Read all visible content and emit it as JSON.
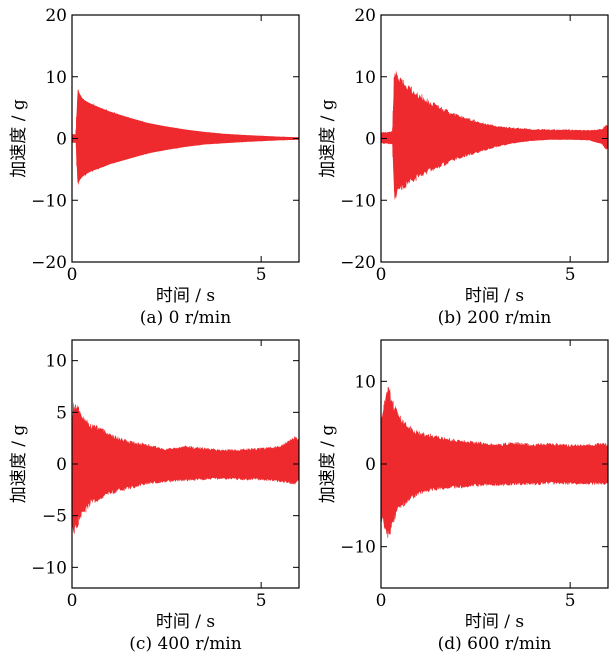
{
  "chart_data": [
    {
      "type": "area",
      "caption": "(a) 0 r/min",
      "xlabel": "时间 / s",
      "ylabel": "加速度 / g",
      "xlim": [
        0,
        6
      ],
      "ylim": [
        -20,
        20
      ],
      "xticks": [
        0,
        5
      ],
      "yticks": [
        -20,
        -10,
        0,
        10,
        20
      ],
      "series": [
        {
          "color": "#ee2a2e",
          "x": [
            0,
            0.1,
            0.15,
            0.2,
            0.3,
            0.5,
            0.8,
            1.0,
            1.5,
            2.0,
            2.5,
            3.0,
            3.5,
            4.0,
            4.5,
            5.0,
            5.5,
            6.0
          ],
          "upper": [
            0.7,
            0.7,
            8.5,
            7.5,
            6.5,
            5.8,
            5.0,
            4.5,
            3.5,
            2.6,
            2.0,
            1.5,
            1.1,
            0.8,
            0.6,
            0.45,
            0.3,
            0.2
          ],
          "lower": [
            -0.7,
            -0.7,
            -8.0,
            -7.0,
            -6.2,
            -5.5,
            -4.8,
            -4.3,
            -3.4,
            -2.5,
            -1.9,
            -1.4,
            -1.0,
            -0.8,
            -0.6,
            -0.45,
            -0.3,
            -0.2
          ]
        }
      ]
    },
    {
      "type": "area",
      "caption": "(b) 200 r/min",
      "xlabel": "时间 / s",
      "ylabel": "加速度 / g",
      "xlim": [
        0,
        6
      ],
      "ylim": [
        -20,
        20
      ],
      "xticks": [
        0,
        5
      ],
      "yticks": [
        -20,
        -10,
        0,
        10,
        20
      ],
      "series": [
        {
          "color": "#ee2a2e",
          "x": [
            0,
            0.3,
            0.35,
            0.5,
            0.8,
            1.0,
            1.5,
            2.0,
            2.5,
            3.0,
            3.5,
            4.0,
            4.5,
            5.0,
            5.5,
            5.85,
            5.95,
            6.0
          ],
          "upper": [
            1.0,
            1.2,
            12.0,
            10.0,
            8.5,
            7.5,
            5.5,
            4.0,
            3.0,
            2.2,
            1.8,
            1.6,
            1.5,
            1.5,
            1.4,
            1.6,
            2.5,
            2.0
          ],
          "lower": [
            -0.8,
            -1.0,
            -10.5,
            -9.0,
            -7.5,
            -6.5,
            -5.0,
            -3.5,
            -2.5,
            -1.5,
            -0.8,
            -0.4,
            -0.2,
            -0.2,
            -0.3,
            -1.0,
            -2.0,
            -1.5
          ]
        }
      ]
    },
    {
      "type": "area",
      "caption": "(c) 400 r/min",
      "xlabel": "时间 / s",
      "ylabel": "加速度 / g",
      "xlim": [
        0,
        6
      ],
      "ylim": [
        -12,
        12
      ],
      "xticks": [
        0,
        5
      ],
      "yticks": [
        -10,
        -5,
        0,
        5,
        10
      ],
      "series": [
        {
          "color": "#ee2a2e",
          "x": [
            0,
            0.05,
            0.1,
            0.3,
            0.5,
            0.8,
            1.0,
            1.5,
            2.0,
            2.5,
            3.0,
            3.5,
            4.0,
            4.5,
            5.0,
            5.5,
            5.9,
            6.0
          ],
          "upper": [
            4.5,
            6.5,
            6.0,
            5.0,
            4.0,
            3.5,
            3.0,
            2.3,
            2.0,
            1.5,
            1.8,
            1.6,
            1.4,
            1.5,
            1.6,
            1.8,
            2.8,
            2.5
          ],
          "lower": [
            -6.5,
            -7.2,
            -6.5,
            -5.0,
            -4.0,
            -3.5,
            -3.0,
            -2.5,
            -2.0,
            -1.8,
            -1.7,
            -1.6,
            -1.5,
            -1.6,
            -1.6,
            -1.8,
            -2.0,
            -1.8
          ]
        }
      ]
    },
    {
      "type": "area",
      "caption": "(d) 600 r/min",
      "xlabel": "时间 / s",
      "ylabel": "加速度 / g",
      "xlim": [
        0,
        6
      ],
      "ylim": [
        -15,
        15
      ],
      "xticks": [
        0,
        5
      ],
      "yticks": [
        -10,
        0,
        10
      ],
      "series": [
        {
          "color": "#ee2a2e",
          "x": [
            0,
            0.1,
            0.2,
            0.3,
            0.5,
            0.8,
            1.0,
            1.5,
            2.0,
            2.5,
            3.0,
            3.5,
            4.0,
            4.5,
            5.0,
            5.5,
            5.9,
            6.0
          ],
          "upper": [
            6.0,
            8.0,
            10.0,
            8.0,
            6.0,
            4.5,
            4.0,
            3.5,
            3.0,
            2.8,
            2.5,
            2.7,
            2.5,
            2.6,
            2.4,
            2.5,
            2.6,
            2.4
          ],
          "lower": [
            -7.0,
            -8.0,
            -9.5,
            -7.5,
            -5.5,
            -4.5,
            -3.8,
            -3.2,
            -3.0,
            -2.8,
            -2.7,
            -2.6,
            -2.6,
            -2.5,
            -2.5,
            -2.5,
            -2.6,
            -2.5
          ]
        }
      ]
    }
  ]
}
